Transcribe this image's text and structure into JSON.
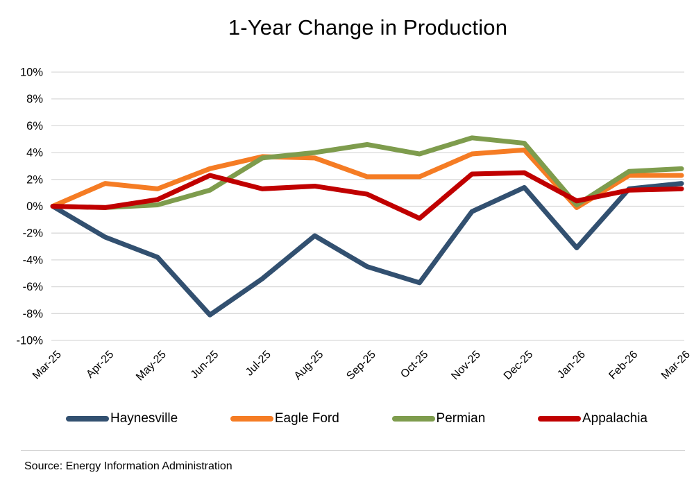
{
  "title": "1-Year Change in Production",
  "source": "Source: Energy Information Administration",
  "chart_data": {
    "type": "line",
    "title": "1-Year Change in Production",
    "categories": [
      "Mar-25",
      "Apr-25",
      "May-25",
      "Jun-25",
      "Jul-25",
      "Aug-25",
      "Sep-25",
      "Oct-25",
      "Nov-25",
      "Dec-25",
      "Jan-26",
      "Feb-26",
      "Mar-26"
    ],
    "series": [
      {
        "name": "Haynesville",
        "color": "#325070",
        "values": [
          0.0,
          -2.3,
          -3.8,
          -8.1,
          -5.4,
          -2.2,
          -4.5,
          -5.7,
          -0.4,
          1.4,
          -3.1,
          1.3,
          1.7
        ]
      },
      {
        "name": "Eagle Ford",
        "color": "#F57C24",
        "values": [
          0.0,
          1.7,
          1.3,
          2.8,
          3.7,
          3.6,
          2.2,
          2.2,
          3.9,
          4.2,
          -0.1,
          2.3,
          2.3
        ]
      },
      {
        "name": "Permian",
        "color": "#7E9C4D",
        "values": [
          0.0,
          -0.1,
          0.1,
          1.2,
          3.6,
          4.0,
          4.6,
          3.9,
          5.1,
          4.7,
          0.1,
          2.6,
          2.8
        ]
      },
      {
        "name": "Appalachia",
        "color": "#C00000",
        "values": [
          0.0,
          -0.1,
          0.5,
          2.3,
          1.3,
          1.5,
          0.9,
          -0.9,
          2.4,
          2.5,
          0.4,
          1.2,
          1.3
        ]
      }
    ],
    "xlabel": "",
    "ylabel": "",
    "ylim": [
      -10,
      10
    ],
    "ytick_step": 2,
    "ytick_suffix": "%",
    "grid": true,
    "gridline_color": "#D9D9D9",
    "legend_position": "bottom"
  }
}
